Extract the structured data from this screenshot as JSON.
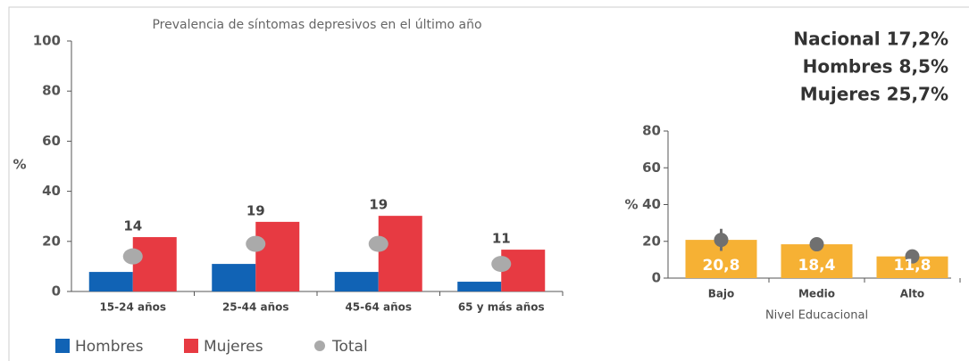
{
  "chart_data": [
    {
      "type": "bar",
      "title": "Prevalencia de síntomas depresivos en el último año",
      "ylabel": "%",
      "categories": [
        "15-24 años",
        "25-44 años",
        "45-64 años",
        "65 y más años"
      ],
      "series": [
        {
          "name": "Hombres",
          "color": "#1163b5",
          "kind": "bar",
          "values": [
            7.8,
            11,
            7.8,
            3.9
          ]
        },
        {
          "name": "Mujeres",
          "color": "#e73a42",
          "kind": "bar",
          "values": [
            21.7,
            27.8,
            30.2,
            16.7
          ]
        },
        {
          "name": "Total",
          "color": "#aaaaaa",
          "kind": "dot",
          "values": [
            14,
            19,
            19,
            11
          ]
        }
      ],
      "ylim": [
        0,
        100
      ],
      "yticks": [
        0,
        20,
        40,
        60,
        80,
        100
      ],
      "legend": "bottom"
    },
    {
      "type": "bar",
      "xlabel": "Nivel Educacional",
      "ylabel": "%",
      "categories": [
        "Bajo",
        "Medio",
        "Alto"
      ],
      "values": [
        20.8,
        18.4,
        11.8
      ],
      "value_labels": [
        "20,8",
        "18,4",
        "11,8"
      ],
      "errors": [
        6,
        3.5,
        3.5
      ],
      "color": "#f6b134",
      "marker_color": "#707070",
      "ylim": [
        0,
        80
      ],
      "yticks": [
        0,
        20,
        40,
        60,
        80
      ],
      "annotations": [
        "Nacional 17,2%",
        "Hombres 8,5%",
        "Mujeres 25,7%"
      ]
    }
  ]
}
